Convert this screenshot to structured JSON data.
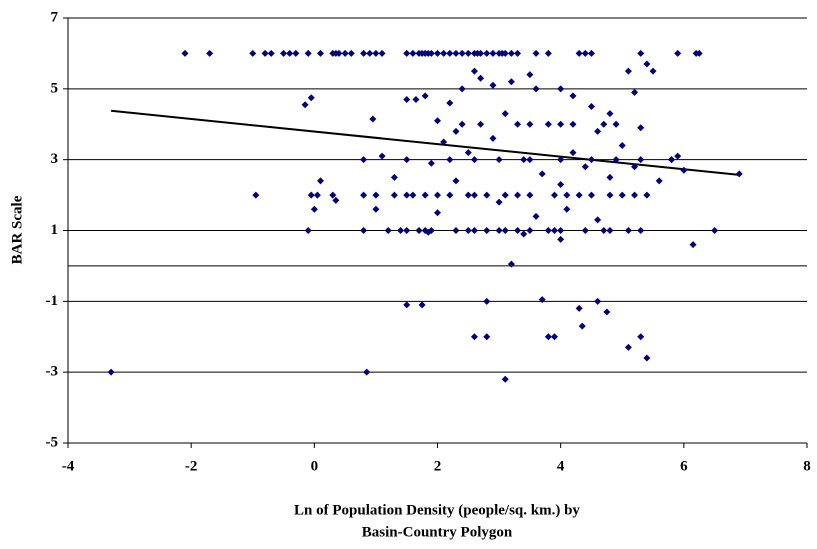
{
  "chart_data": {
    "type": "scatter",
    "xlabel": [
      "Ln of Population Density (people/sq. km.) by",
      "Basin-Country Polygon"
    ],
    "ylabel": "BAR Scale",
    "xlim": [
      -4,
      8
    ],
    "xticks": [
      -4,
      -2,
      0,
      2,
      4,
      6,
      8
    ],
    "ylim": [
      -5,
      7
    ],
    "yticks": [
      7,
      5,
      3,
      1,
      -1,
      -3,
      -5
    ],
    "grid": true,
    "zero_line": true,
    "color": "#000080",
    "trendline": {
      "color": "#000000",
      "x": [
        -3.3,
        6.9
      ],
      "y": [
        4.38,
        2.57
      ]
    },
    "x": [
      -2.1,
      -1.7,
      -1.0,
      -0.8,
      -0.7,
      -0.5,
      -0.4,
      -0.3,
      -0.1,
      0.1,
      0.3,
      0.35,
      0.4,
      0.5,
      0.6,
      0.8,
      0.9,
      1.0,
      1.1,
      1.5,
      1.6,
      1.7,
      1.75,
      1.8,
      1.85,
      1.9,
      2.0,
      2.1,
      2.2,
      2.3,
      2.4,
      2.5,
      2.6,
      2.65,
      2.7,
      2.8,
      2.9,
      3.0,
      3.05,
      3.1,
      3.2,
      3.3,
      3.6,
      3.8,
      4.3,
      4.4,
      4.5,
      5.3,
      5.9,
      6.2,
      6.25,
      -0.1,
      0.8,
      1.2,
      1.4,
      1.5,
      1.7,
      1.8,
      1.9,
      2.3,
      2.5,
      2.6,
      2.8,
      3.0,
      3.1,
      3.3,
      3.5,
      3.8,
      3.9,
      4.0,
      4.4,
      4.7,
      4.8,
      5.1,
      5.3,
      6.5,
      -0.95,
      -0.05,
      0.05,
      0.3,
      0.8,
      1.0,
      1.3,
      1.5,
      1.6,
      1.8,
      2.0,
      2.2,
      2.5,
      2.6,
      2.8,
      3.1,
      3.3,
      3.5,
      3.9,
      4.1,
      4.3,
      4.5,
      4.8,
      5.0,
      5.2,
      5.4,
      0.8,
      1.5,
      2.2,
      2.6,
      3.0,
      3.5,
      4.0,
      4.5,
      4.9,
      5.3,
      5.8,
      2.4,
      2.7,
      3.3,
      3.5,
      3.8,
      4.0,
      4.2,
      4.7,
      4.9,
      -3.3,
      0.85,
      3.1,
      3.2,
      1.5,
      1.75,
      2.8,
      2.6,
      2.8,
      3.7,
      3.8,
      3.9,
      4.3,
      4.35,
      4.6,
      4.75,
      5.1,
      5.3,
      5.4,
      6.15,
      6.9,
      -0.15,
      -0.05,
      0.95,
      0.1,
      0.35,
      1.0,
      0.0,
      1.1,
      1.5,
      1.65,
      1.8,
      2.0,
      2.2,
      2.4,
      2.6,
      2.7,
      2.9,
      3.2,
      3.5,
      3.6,
      4.0,
      4.2,
      4.5,
      4.8,
      5.1,
      5.2,
      5.4,
      5.5,
      5.3,
      5.6,
      5.9,
      6.0,
      5.8,
      2.1,
      2.3,
      2.5,
      2.9,
      3.1,
      3.4,
      3.7,
      4.0,
      4.2,
      4.4,
      4.6,
      4.8,
      5.0,
      5.2,
      1.9,
      2.3,
      3.6,
      4.1,
      4.6,
      3.0,
      2.0,
      1.3,
      4.0,
      3.4,
      1.85
    ],
    "y": [
      6,
      6,
      6,
      6,
      6,
      6,
      6,
      6,
      6,
      6,
      6,
      6,
      6,
      6,
      6,
      6,
      6,
      6,
      6,
      6,
      6,
      6,
      6,
      6,
      6,
      6,
      6,
      6,
      6,
      6,
      6,
      6,
      6,
      6,
      6,
      6,
      6,
      6,
      6,
      6,
      6,
      6,
      6,
      6,
      6,
      6,
      6,
      6,
      6,
      6,
      6,
      1,
      1,
      1,
      1,
      1,
      1,
      1,
      1,
      1,
      1,
      1,
      1,
      1,
      1,
      1,
      1,
      1,
      1,
      1,
      1,
      1,
      1,
      1,
      1,
      1,
      2,
      2,
      2,
      2,
      2,
      2,
      2,
      2,
      2,
      2,
      2,
      2,
      2,
      2,
      2,
      2,
      2,
      2,
      2,
      2,
      2,
      2,
      2,
      2,
      2,
      2,
      3,
      3,
      3,
      3,
      3,
      3,
      3,
      3,
      3,
      3,
      3,
      4,
      4,
      4,
      4,
      4,
      4,
      4,
      4,
      4,
      -3,
      -3,
      -3.2,
      0.05,
      -1.1,
      -1.1,
      -1,
      -2,
      -2,
      -0.95,
      -2,
      -2,
      -1.2,
      -1.7,
      -1,
      -1.3,
      -2.3,
      -2,
      -2.6,
      0.6,
      2.6,
      4.55,
      4.75,
      4.15,
      2.4,
      1.85,
      1.6,
      1.6,
      3.1,
      4.7,
      4.7,
      4.8,
      4.1,
      4.6,
      5.0,
      5.5,
      5.3,
      5.1,
      5.2,
      5.4,
      5.0,
      5.0,
      4.8,
      4.5,
      4.3,
      5.5,
      4.9,
      5.7,
      5.5,
      3.9,
      2.4,
      3.1,
      2.7,
      3.0,
      3.5,
      3.8,
      3.2,
      3.6,
      4.3,
      3.0,
      2.6,
      2.3,
      3.2,
      2.8,
      3.8,
      2.5,
      3.4,
      2.8,
      2.9,
      2.4,
      1.4,
      1.6,
      1.3,
      1.8,
      1.5,
      2.5,
      0.75,
      0.9,
      0.95
    ]
  }
}
